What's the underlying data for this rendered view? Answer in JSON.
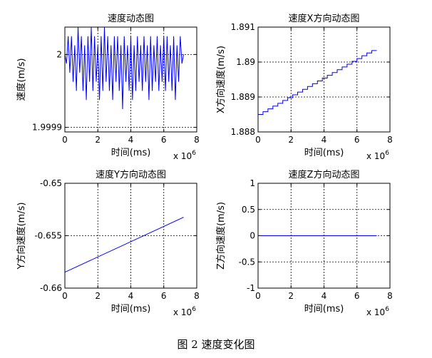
{
  "figure": {
    "caption": "图 2  速度变化图"
  },
  "colors": {
    "line": "#0000ff",
    "axes": "#000000",
    "grid": "#000000"
  },
  "chart_data": [
    {
      "type": "line",
      "title": "速度动态图",
      "xlabel": "时间(ms)",
      "ylabel": "速度(m/s)",
      "x_exponent_label": "x 10",
      "x_exponent": "6",
      "xlim": [
        0,
        8
      ],
      "ylim": [
        1.999915,
        2.00003
      ],
      "xticks": [
        0,
        2,
        4,
        6,
        8
      ],
      "xtick_labels": [
        "0",
        "2",
        "4",
        "6",
        "8"
      ],
      "yticks": [
        1.99992,
        2.0
      ],
      "ytick_labels": [
        "1.9999",
        "2"
      ],
      "grid": true,
      "series": [
        {
          "x": [
            0.0,
            0.1,
            0.2,
            0.3,
            0.4,
            0.5,
            0.6,
            0.7,
            0.8,
            0.9,
            1.0,
            1.1,
            1.2,
            1.3,
            1.4,
            1.5,
            1.6,
            1.7,
            1.8,
            1.9,
            2.0,
            2.1,
            2.2,
            2.3,
            2.4,
            2.5,
            2.6,
            2.7,
            2.8,
            2.9,
            3.0,
            3.1,
            3.2,
            3.3,
            3.4,
            3.5,
            3.6,
            3.7,
            3.8,
            3.9,
            4.0,
            4.1,
            4.2,
            4.3,
            4.4,
            4.5,
            4.6,
            4.7,
            4.8,
            4.9,
            5.0,
            5.1,
            5.2,
            5.3,
            5.4,
            5.5,
            5.6,
            5.7,
            5.8,
            5.9,
            6.0,
            6.1,
            6.2,
            6.3,
            6.4,
            6.5,
            6.6,
            6.7,
            6.8,
            6.9,
            7.0,
            7.1,
            7.2
          ],
          "y": [
            2.0,
            1.99999,
            2.00002,
            1.99998,
            2.00002,
            1.99997,
            2.00001,
            1.99996,
            2.00003,
            1.99998,
            2.00002,
            1.99996,
            2.00001,
            1.99995,
            2.00002,
            1.99997,
            2.00003,
            1.99996,
            2.00002,
            1.99997,
            2.00001,
            1.99995,
            2.00002,
            1.99996,
            2.00003,
            1.99997,
            2.00002,
            1.99996,
            2.00001,
            1.99995,
            2.00002,
            1.99997,
            2.00002,
            1.99996,
            2.00001,
            1.99994,
            2.00002,
            1.99997,
            2.00001,
            1.99996,
            2.00002,
            1.99995,
            2.00001,
            1.99996,
            2.00002,
            1.99997,
            2.00001,
            1.99996,
            2.00002,
            1.99997,
            2.00001,
            1.99995,
            2.00002,
            1.99996,
            2.00001,
            1.99997,
            2.00002,
            1.99996,
            2.00001,
            1.99997,
            2.00002,
            1.99996,
            2.00002,
            1.99997,
            2.00001,
            1.99996,
            2.00002,
            1.99995,
            2.00001,
            1.99997,
            2.00002,
            1.99999,
            2.0
          ]
        }
      ]
    },
    {
      "type": "line",
      "title": "速度X方向动态图",
      "xlabel": "时间(ms)",
      "ylabel": "X方向速度(m/s)",
      "x_exponent_label": "x 10",
      "x_exponent": "6",
      "xlim": [
        0,
        8
      ],
      "ylim": [
        1.888,
        1.891
      ],
      "xticks": [
        0,
        2,
        4,
        6,
        8
      ],
      "xtick_labels": [
        "0",
        "2",
        "4",
        "6",
        "8"
      ],
      "yticks": [
        1.888,
        1.889,
        1.89,
        1.891
      ],
      "ytick_labels": [
        "1.888",
        "1.889",
        "1.89",
        "1.891"
      ],
      "grid": true,
      "series": [
        {
          "x": [
            0.0,
            0.3,
            0.3,
            0.6,
            0.6,
            0.9,
            0.9,
            1.2,
            1.2,
            1.5,
            1.5,
            1.8,
            1.8,
            2.1,
            2.1,
            2.4,
            2.4,
            2.7,
            2.7,
            3.0,
            3.0,
            3.3,
            3.3,
            3.6,
            3.6,
            3.9,
            3.9,
            4.2,
            4.2,
            4.5,
            4.5,
            4.8,
            4.8,
            5.1,
            5.1,
            5.4,
            5.4,
            5.7,
            5.7,
            6.0,
            6.0,
            6.3,
            6.3,
            6.6,
            6.6,
            6.9,
            6.9,
            7.2
          ],
          "y": [
            1.8885,
            1.8885,
            1.88858,
            1.88858,
            1.88866,
            1.88866,
            1.88874,
            1.88874,
            1.88882,
            1.88882,
            1.8889,
            1.8889,
            1.88898,
            1.88898,
            1.88906,
            1.88906,
            1.88914,
            1.88914,
            1.88922,
            1.88922,
            1.8893,
            1.8893,
            1.88938,
            1.88938,
            1.88946,
            1.88946,
            1.88954,
            1.88954,
            1.88962,
            1.88962,
            1.8897,
            1.8897,
            1.88978,
            1.88978,
            1.88986,
            1.88986,
            1.88994,
            1.88994,
            1.89002,
            1.89002,
            1.8901,
            1.8901,
            1.89018,
            1.89018,
            1.89026,
            1.89026,
            1.89033,
            1.89033
          ]
        }
      ]
    },
    {
      "type": "line",
      "title": "速度Y方向动态图",
      "xlabel": "时间(ms)",
      "ylabel": "Y方向速度(m/s)",
      "x_exponent_label": "x 10",
      "x_exponent": "6",
      "xlim": [
        0,
        8
      ],
      "ylim": [
        -0.66,
        -0.65
      ],
      "xticks": [
        0,
        2,
        4,
        6,
        8
      ],
      "xtick_labels": [
        "0",
        "2",
        "4",
        "6",
        "8"
      ],
      "yticks": [
        -0.66,
        -0.655,
        -0.65
      ],
      "ytick_labels": [
        "-0.66",
        "-0.655",
        "-0.65"
      ],
      "grid": true,
      "series": [
        {
          "x": [
            0.0,
            7.2
          ],
          "y": [
            -0.65848,
            -0.65324
          ]
        }
      ]
    },
    {
      "type": "line",
      "title": "速度Z方向动态图",
      "xlabel": "时间(ms)",
      "ylabel": "Z方向速度(m/s)",
      "x_exponent_label": "x 10",
      "x_exponent": "6",
      "xlim": [
        0,
        8
      ],
      "ylim": [
        -1,
        1
      ],
      "xticks": [
        0,
        2,
        4,
        6,
        8
      ],
      "xtick_labels": [
        "0",
        "2",
        "4",
        "6",
        "8"
      ],
      "yticks": [
        -1,
        -0.5,
        0,
        0.5,
        1
      ],
      "ytick_labels": [
        "-1",
        "-0.5",
        "0",
        "0.5",
        "1"
      ],
      "grid": true,
      "series": [
        {
          "x": [
            0.0,
            7.2
          ],
          "y": [
            0,
            0
          ]
        }
      ]
    }
  ]
}
